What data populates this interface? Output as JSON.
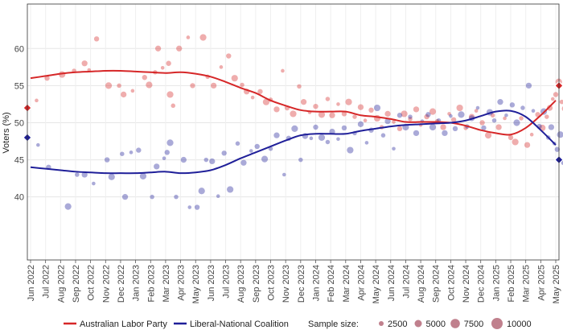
{
  "chart_data": {
    "type": "scatter",
    "ylabel": "Voters (%)",
    "xlabel": "",
    "ylim": [
      31.5,
      66
    ],
    "y_ticks": [
      40,
      45,
      50,
      55,
      60
    ],
    "x_start": "2022-06-01",
    "x_end": "2025-05-01",
    "x_tick_labels": [
      "Jun 2022",
      "Jul 2022",
      "Aug 2022",
      "Sep 2022",
      "Oct 2022",
      "Nov 2022",
      "Dec 2022",
      "Jan 2023",
      "Feb 2023",
      "Mar 2023",
      "Apr 2023",
      "May 2023",
      "Jun 2023",
      "Jul 2023",
      "Aug 2023",
      "Sep 2023",
      "Oct 2023",
      "Nov 2023",
      "Dec 2023",
      "Jan 2024",
      "Feb 2024",
      "Mar 2024",
      "Apr 2024",
      "May 2024",
      "Jun 2024",
      "Jul 2024",
      "Aug 2024",
      "Sep 2024",
      "Oct 2024",
      "Nov 2024",
      "Dec 2024",
      "Jan 2025",
      "Feb 2025",
      "Mar 2025",
      "Apr 2025",
      "May 2025"
    ],
    "grid": true,
    "legend_position": "bottom",
    "series": [
      {
        "name": "Australian Labor Party",
        "color": "#d62728",
        "start_marker": 52,
        "end_marker": 55,
        "trend": [
          [
            0,
            56
          ],
          [
            1,
            56.3
          ],
          [
            2,
            56.6
          ],
          [
            3,
            56.8
          ],
          [
            4,
            56.9
          ],
          [
            5,
            57
          ],
          [
            6,
            57
          ],
          [
            7,
            56.9
          ],
          [
            8,
            56.8
          ],
          [
            9,
            56.7
          ],
          [
            10,
            56.8
          ],
          [
            11,
            56.6
          ],
          [
            12,
            56.2
          ],
          [
            13,
            55.5
          ],
          [
            14,
            54.7
          ],
          [
            15,
            54
          ],
          [
            16,
            53
          ],
          [
            17,
            52.3
          ],
          [
            18,
            51.7
          ],
          [
            19,
            51.5
          ],
          [
            20,
            51.5
          ],
          [
            21,
            51.5
          ],
          [
            22,
            51
          ],
          [
            23,
            50.8
          ],
          [
            24,
            50.5
          ],
          [
            25,
            50.1
          ],
          [
            26,
            50.1
          ],
          [
            27,
            50.1
          ],
          [
            28,
            50
          ],
          [
            29,
            49.6
          ],
          [
            30,
            49
          ],
          [
            31,
            48.6
          ],
          [
            32,
            48.4
          ],
          [
            33,
            49.3
          ],
          [
            34,
            51
          ],
          [
            35,
            53
          ]
        ],
        "points": [
          [
            0.4,
            53
          ],
          [
            1.1,
            56
          ],
          [
            2.1,
            56.5
          ],
          [
            2.9,
            57
          ],
          [
            3.6,
            58
          ],
          [
            3.9,
            57.1
          ],
          [
            4.4,
            61.3
          ],
          [
            5.2,
            55
          ],
          [
            5.9,
            55
          ],
          [
            6.2,
            53.8
          ],
          [
            6.8,
            54.3
          ],
          [
            7.6,
            56.1
          ],
          [
            7.9,
            55.1
          ],
          [
            8.3,
            56.8
          ],
          [
            8.5,
            60
          ],
          [
            8.8,
            57.4
          ],
          [
            9.2,
            58
          ],
          [
            9.3,
            53.8
          ],
          [
            9.5,
            52.3
          ],
          [
            9.9,
            60
          ],
          [
            10.5,
            61.5
          ],
          [
            10.8,
            55
          ],
          [
            11.5,
            61.5
          ],
          [
            11.8,
            56.2
          ],
          [
            12.2,
            55
          ],
          [
            12.7,
            57.5
          ],
          [
            13.2,
            59
          ],
          [
            13.6,
            56
          ],
          [
            14.1,
            55.1
          ],
          [
            14.4,
            54.2
          ],
          [
            14.8,
            53.4
          ],
          [
            15.3,
            54.2
          ],
          [
            15.7,
            52.8
          ],
          [
            16,
            53.1
          ],
          [
            16.4,
            51.8
          ],
          [
            16.8,
            57
          ],
          [
            17.1,
            52
          ],
          [
            17.5,
            51.2
          ],
          [
            17.9,
            54.9
          ],
          [
            18.2,
            52.8
          ],
          [
            18.6,
            51.4
          ],
          [
            19,
            52.2
          ],
          [
            19.4,
            51.1
          ],
          [
            19.8,
            53.2
          ],
          [
            20.1,
            51
          ],
          [
            20.5,
            52.5
          ],
          [
            20.9,
            51.2
          ],
          [
            21.2,
            52.8
          ],
          [
            21.6,
            50.8
          ],
          [
            22,
            52.1
          ],
          [
            22.3,
            50.3
          ],
          [
            22.7,
            51.7
          ],
          [
            23.1,
            50.6
          ],
          [
            23.4,
            49.4
          ],
          [
            23.8,
            51.2
          ],
          [
            24.2,
            50.1
          ],
          [
            24.6,
            49.2
          ],
          [
            24.9,
            51.2
          ],
          [
            25.3,
            50.5
          ],
          [
            25.7,
            51.8
          ],
          [
            26,
            49.7
          ],
          [
            26.4,
            50.8
          ],
          [
            26.8,
            51.5
          ],
          [
            27.1,
            50.2
          ],
          [
            27.5,
            49.4
          ],
          [
            27.9,
            51.2
          ],
          [
            28.2,
            50.4
          ],
          [
            28.6,
            52
          ],
          [
            29,
            49.3
          ],
          [
            29.4,
            50.8
          ],
          [
            29.7,
            51.6
          ],
          [
            30.1,
            50
          ],
          [
            30.5,
            48.3
          ],
          [
            30.8,
            51
          ],
          [
            31.2,
            49.4
          ],
          [
            31.6,
            50.6
          ],
          [
            32,
            48
          ],
          [
            32.3,
            47.4
          ],
          [
            32.7,
            50.6
          ],
          [
            33.1,
            47
          ],
          [
            33.4,
            48.4
          ],
          [
            33.8,
            51.1
          ],
          [
            34.1,
            49.3
          ],
          [
            34.4,
            50.8
          ],
          [
            34.6,
            52
          ],
          [
            34.8,
            53.2
          ],
          [
            35,
            53.8
          ],
          [
            35.2,
            55.5
          ],
          [
            35.4,
            52.8
          ],
          [
            35.6,
            51.9
          ],
          [
            35.8,
            53.3
          ],
          [
            35.9,
            55.8
          ]
        ]
      },
      {
        "name": "Liberal-National Coalition",
        "color": "#1f1f99",
        "start_marker": 48,
        "end_marker": 45,
        "trend": [
          [
            0,
            44
          ],
          [
            1,
            43.8
          ],
          [
            2,
            43.6
          ],
          [
            3,
            43.4
          ],
          [
            4,
            43.3
          ],
          [
            5,
            43.2
          ],
          [
            6,
            43.2
          ],
          [
            7,
            43.2
          ],
          [
            8,
            43.3
          ],
          [
            9,
            43.4
          ],
          [
            10,
            43.2
          ],
          [
            11,
            43.3
          ],
          [
            12,
            43.6
          ],
          [
            13,
            44.3
          ],
          [
            14,
            45.2
          ],
          [
            15,
            46
          ],
          [
            16,
            46.8
          ],
          [
            17,
            47.6
          ],
          [
            18,
            48.3
          ],
          [
            19,
            48.5
          ],
          [
            20,
            48.5
          ],
          [
            21,
            48.5
          ],
          [
            22,
            48.9
          ],
          [
            23,
            49.2
          ],
          [
            24,
            49.5
          ],
          [
            25,
            49.7
          ],
          [
            26,
            49.8
          ],
          [
            27,
            49.9
          ],
          [
            28,
            50
          ],
          [
            29,
            50.3
          ],
          [
            30,
            50.9
          ],
          [
            31,
            51.5
          ],
          [
            32,
            51.6
          ],
          [
            33,
            50.8
          ],
          [
            34,
            49
          ],
          [
            35,
            47
          ]
        ],
        "points": [
          [
            0.5,
            47
          ],
          [
            1.2,
            44
          ],
          [
            2.5,
            38.7
          ],
          [
            3.1,
            43
          ],
          [
            3.6,
            43
          ],
          [
            4.2,
            41.8
          ],
          [
            5.1,
            45
          ],
          [
            5.4,
            42.7
          ],
          [
            6.1,
            45.8
          ],
          [
            6.3,
            40
          ],
          [
            6.7,
            46
          ],
          [
            7.2,
            46.3
          ],
          [
            7.5,
            42.8
          ],
          [
            8.1,
            40
          ],
          [
            8.4,
            44.1
          ],
          [
            8.9,
            45.2
          ],
          [
            9.1,
            46
          ],
          [
            9.3,
            47.3
          ],
          [
            9.7,
            40
          ],
          [
            10.2,
            45
          ],
          [
            10.6,
            38.6
          ],
          [
            11.1,
            38.6
          ],
          [
            11.4,
            40.8
          ],
          [
            11.7,
            45
          ],
          [
            12.1,
            44.8
          ],
          [
            12.5,
            40.1
          ],
          [
            12.9,
            45.9
          ],
          [
            13.3,
            41
          ],
          [
            13.8,
            47.2
          ],
          [
            14.2,
            44.6
          ],
          [
            14.7,
            46.2
          ],
          [
            15.1,
            46.8
          ],
          [
            15.6,
            45.1
          ],
          [
            16,
            46.5
          ],
          [
            16.4,
            48.3
          ],
          [
            16.9,
            43
          ],
          [
            17.2,
            47.9
          ],
          [
            17.6,
            49.2
          ],
          [
            18,
            45
          ],
          [
            18.3,
            48.2
          ],
          [
            18.7,
            47.9
          ],
          [
            19,
            49.4
          ],
          [
            19.4,
            48
          ],
          [
            19.8,
            47.4
          ],
          [
            20.1,
            48.8
          ],
          [
            20.5,
            47.8
          ],
          [
            20.9,
            49.3
          ],
          [
            21.3,
            46.3
          ],
          [
            21.6,
            48.6
          ],
          [
            22,
            49.8
          ],
          [
            22.4,
            47.3
          ],
          [
            22.7,
            49
          ],
          [
            23.1,
            52
          ],
          [
            23.5,
            48.3
          ],
          [
            23.8,
            50.2
          ],
          [
            24.2,
            46.5
          ],
          [
            24.6,
            51
          ],
          [
            25,
            49.4
          ],
          [
            25.3,
            50.8
          ],
          [
            25.7,
            48.6
          ],
          [
            26.1,
            50.2
          ],
          [
            26.5,
            51.1
          ],
          [
            26.8,
            49.4
          ],
          [
            27.2,
            50.3
          ],
          [
            27.6,
            48.6
          ],
          [
            28,
            50.9
          ],
          [
            28.3,
            49.2
          ],
          [
            28.7,
            51.1
          ],
          [
            29.1,
            49.5
          ],
          [
            29.4,
            50.6
          ],
          [
            29.8,
            52
          ],
          [
            30.2,
            49.3
          ],
          [
            30.6,
            51.4
          ],
          [
            30.9,
            50.3
          ],
          [
            31.3,
            52.8
          ],
          [
            31.7,
            51
          ],
          [
            32.1,
            52.4
          ],
          [
            32.4,
            50
          ],
          [
            32.8,
            52
          ],
          [
            33.2,
            55
          ],
          [
            33.5,
            51.6
          ],
          [
            33.9,
            49.5
          ],
          [
            34.2,
            51.5
          ],
          [
            34.5,
            48
          ],
          [
            34.7,
            49.4
          ],
          [
            34.9,
            47.2
          ],
          [
            35.1,
            46.4
          ],
          [
            35.3,
            48.4
          ],
          [
            35.5,
            44.6
          ],
          [
            35.7,
            47.2
          ],
          [
            35.9,
            46.2
          ]
        ]
      }
    ],
    "sample_size_legend": {
      "label": "Sample size:",
      "values": [
        2500,
        5000,
        7500,
        10000
      ]
    }
  }
}
